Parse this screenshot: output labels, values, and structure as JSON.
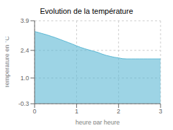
{
  "chart_data": {
    "type": "area",
    "title": "Evolution de la température",
    "xlabel": "heure par heure",
    "ylabel": "Température en °C",
    "x": [
      0,
      0.05,
      0.1,
      0.15,
      0.2,
      0.3,
      0.4,
      0.5,
      0.6,
      0.7,
      0.8,
      0.9,
      1.0,
      1.1,
      1.2,
      1.3,
      1.4,
      1.5,
      1.6,
      1.7,
      1.8,
      1.9,
      2.0,
      2.05,
      2.1,
      2.2,
      2.3,
      2.4,
      2.5,
      2.6,
      2.7,
      2.8,
      2.9,
      3.0
    ],
    "values": [
      3.35,
      3.33,
      3.3,
      3.27,
      3.24,
      3.18,
      3.11,
      3.04,
      2.96,
      2.88,
      2.8,
      2.72,
      2.63,
      2.55,
      2.48,
      2.42,
      2.36,
      2.3,
      2.22,
      2.15,
      2.1,
      2.05,
      2.02,
      2.0,
      1.98,
      1.97,
      1.97,
      1.97,
      1.97,
      1.97,
      1.97,
      1.97,
      1.97,
      1.97
    ],
    "color": "#5bb8d4",
    "xlim": [
      0,
      3
    ],
    "ylim": [
      -0.3,
      3.9
    ],
    "xticks": [
      0,
      1,
      2,
      3
    ],
    "yticks": [
      -0.3,
      {
        "value": 1.0,
        "label": "1.0"
      },
      2.4,
      3.9
    ],
    "grid": true
  }
}
